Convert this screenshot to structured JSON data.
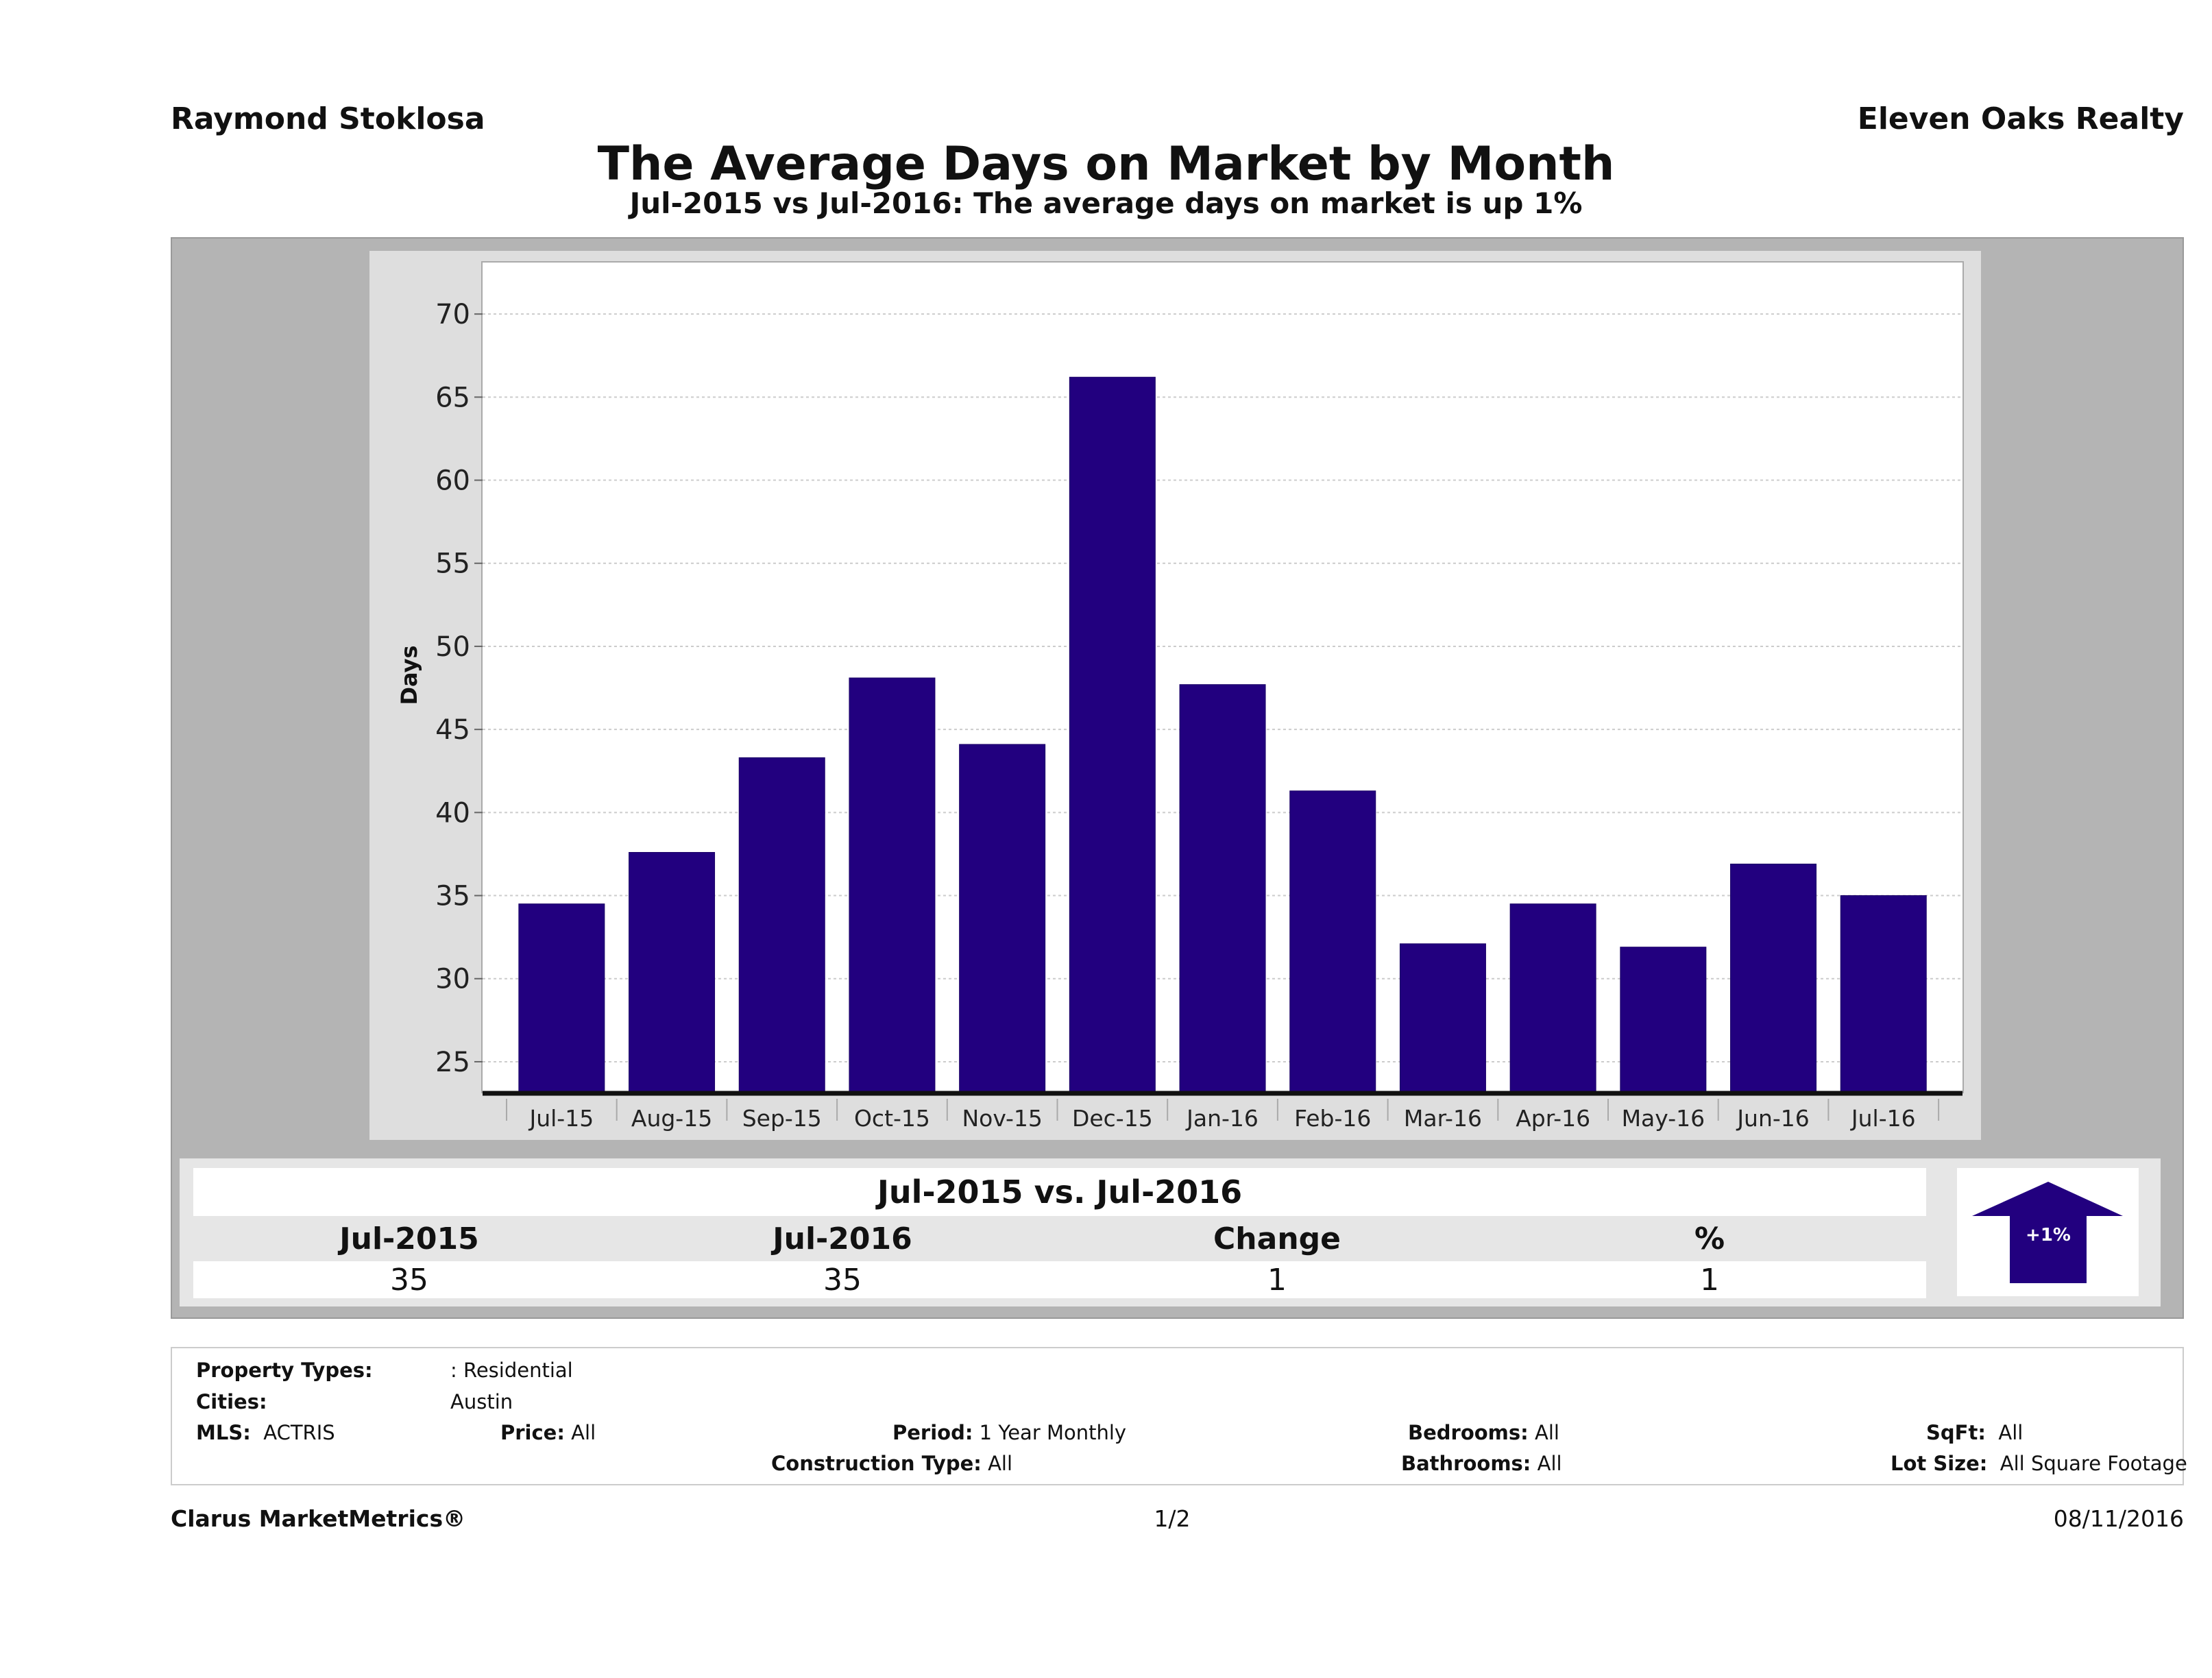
{
  "header": {
    "agent": "Raymond Stoklosa",
    "brokerage": "Eleven Oaks Realty"
  },
  "title": "The Average Days on Market by Month",
  "subtitle": "Jul-2015 vs Jul-2016: The average days on market is up 1%",
  "chart_data": {
    "type": "bar",
    "title": "The Average Days on Market by Month",
    "xlabel": "",
    "ylabel": "Days",
    "categories": [
      "Jul-15",
      "Aug-15",
      "Sep-15",
      "Oct-15",
      "Nov-15",
      "Dec-15",
      "Jan-16",
      "Feb-16",
      "Mar-16",
      "Apr-16",
      "May-16",
      "Jun-16",
      "Jul-16"
    ],
    "values": [
      34.5,
      37.6,
      43.3,
      48.1,
      44.1,
      66.2,
      47.7,
      41.3,
      32.1,
      34.5,
      31.9,
      36.9,
      35.0
    ],
    "ylim": [
      23.1,
      73.1
    ],
    "yticks": [
      25,
      30,
      35,
      40,
      45,
      50,
      55,
      60,
      65,
      70
    ],
    "grid": true,
    "bar_color": "#22007f"
  },
  "stats": {
    "title": "Jul-2015 vs. Jul-2016",
    "headers": [
      "Jul-2015",
      "Jul-2016",
      "Change",
      "%"
    ],
    "values": [
      "35",
      "35",
      "1",
      "1"
    ],
    "badge": "+1%",
    "badge_direction": "up",
    "badge_color": "#22007f"
  },
  "criteria": {
    "property_types_label": "Property Types:",
    "property_types": ": Residential",
    "cities_label": "Cities:",
    "cities": "Austin",
    "mls_label": "MLS:",
    "mls": "ACTRIS",
    "price_label": "Price:",
    "price": "All",
    "period_label": "Period:",
    "period": "1 Year Monthly",
    "bedrooms_label": "Bedrooms:",
    "bedrooms": "All",
    "sqft_label": "SqFt:",
    "sqft": "All",
    "construction_label": "Construction Type:",
    "construction": "All",
    "bathrooms_label": "Bathrooms:",
    "bathrooms": "All",
    "lot_label": "Lot Size:",
    "lot": "All Square Footage"
  },
  "footer": {
    "brand": "Clarus MarketMetrics®",
    "page": "1/2",
    "date": "08/11/2016"
  }
}
